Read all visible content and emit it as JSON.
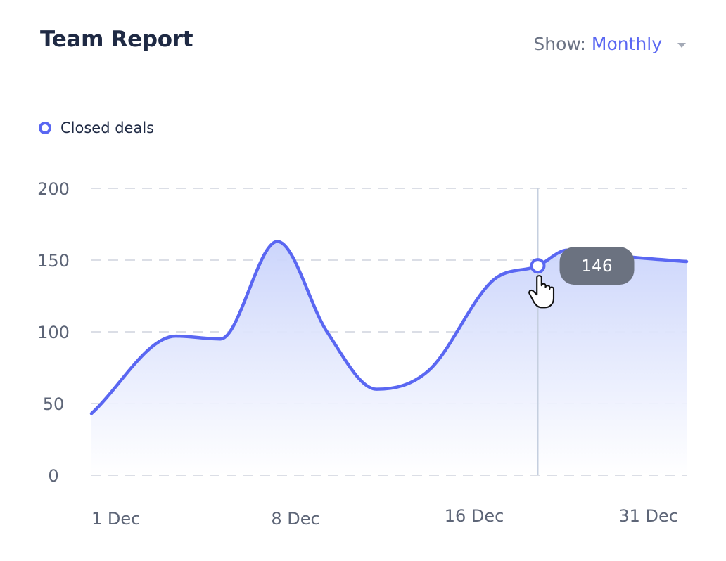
{
  "header": {
    "title": "Team Report",
    "show_label": "Show:",
    "show_value": "Monthly",
    "dropdown_icon": "caret-down-icon"
  },
  "legend": {
    "label": "Closed deals",
    "marker_icon": "ring-dot-icon"
  },
  "tooltip": {
    "value": "146"
  },
  "colors": {
    "line": "#5a67f2",
    "fill_top": "#c9d3fb",
    "fill_bottom": "#ffffff",
    "tooltip_bg": "#6b7280",
    "grid": "#cfd4de",
    "crosshair": "#c5cfdf"
  },
  "chart_data": {
    "type": "area",
    "title": "Team Report",
    "xlabel": "",
    "ylabel": "",
    "ylim": [
      0,
      200
    ],
    "yticks": [
      "0",
      "50",
      "100",
      "150",
      "200"
    ],
    "xticks": [
      "1 Dec",
      "8 Dec",
      "16 Dec",
      "31 Dec"
    ],
    "grid": true,
    "legend_position": "top-left",
    "series": [
      {
        "name": "Closed deals",
        "x": [
          0,
          3.4,
          5.2,
          7.5,
          9.5,
          11.5,
          13.6,
          16.2,
          18.0,
          19.2,
          21.8,
          24.0
        ],
        "y": [
          43,
          97,
          95,
          163,
          100,
          60,
          73,
          136,
          146,
          157,
          152,
          149
        ]
      }
    ],
    "x_range": [
      0,
      24
    ],
    "highlight": {
      "x": 18.0,
      "y": 146
    }
  }
}
